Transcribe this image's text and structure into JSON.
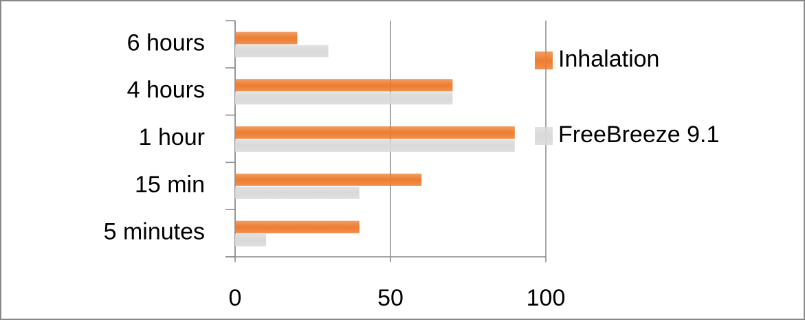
{
  "chart_data": {
    "type": "bar",
    "orientation": "horizontal",
    "categories": [
      "6 hours",
      "4 hours",
      "1 hour",
      "15 min",
      "5 minutes"
    ],
    "series": [
      {
        "name": "Inhalation",
        "color": "#ed7d31",
        "values": [
          20,
          70,
          90,
          60,
          40
        ]
      },
      {
        "name": "FreeBreeze 9.1",
        "color": "#d9d9d9",
        "values": [
          30,
          70,
          90,
          40,
          10
        ]
      }
    ],
    "xlim": [
      0,
      100
    ],
    "xticks": [
      0,
      50,
      100
    ],
    "grid": true,
    "legend": "right"
  }
}
